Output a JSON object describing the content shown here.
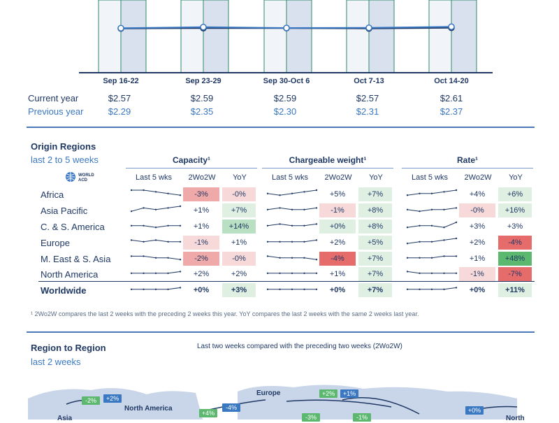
{
  "top_chart": {
    "weeks": [
      "Sep 16-22",
      "Sep 23-29",
      "Sep 30-Oct 6",
      "Oct 7-13",
      "Oct 14-20"
    ],
    "rows": [
      {
        "label": "Current year",
        "values": [
          "$2.57",
          "$2.59",
          "$2.59",
          "$2.57",
          "$2.61"
        ]
      },
      {
        "label": "Previous year",
        "values": [
          "$2.29",
          "$2.35",
          "$2.30",
          "$2.31",
          "$2.37"
        ]
      }
    ],
    "current": [
      2.57,
      2.59,
      2.59,
      2.57,
      2.61
    ],
    "previous": [
      2.29,
      2.35,
      2.3,
      2.31,
      2.37
    ],
    "colors": {
      "current": "#1f3864",
      "previous": "#3a78c2",
      "bar": "#d9e1ef"
    }
  },
  "origin": {
    "title": "Origin Regions",
    "subtitle": "last 2 to 5 weeks",
    "logo_text": [
      "WORLD",
      "ACD"
    ],
    "groups": [
      {
        "title": "Capacity¹",
        "cols": [
          "Last 5 wks",
          "2Wo2W",
          "YoY"
        ]
      },
      {
        "title": "Chargeable weight¹",
        "cols": [
          "Last 5 wks",
          "2Wo2W",
          "YoY"
        ]
      },
      {
        "title": "Rate¹",
        "cols": [
          "Last 5 wks",
          "2Wo2W",
          "YoY"
        ]
      }
    ],
    "regions": [
      {
        "name": "Africa",
        "bold": false,
        "sparks": [
          [
            5,
            5,
            4,
            3,
            2
          ],
          [
            3,
            2,
            3,
            4,
            5
          ],
          [
            2,
            3,
            3,
            4,
            5
          ]
        ],
        "cells": [
          [
            "-3%",
            "neg2"
          ],
          [
            "-0%",
            "neg1"
          ],
          [
            "+5%",
            "neu"
          ],
          [
            "+7%",
            "pos1"
          ],
          [
            "+4%",
            "neu"
          ],
          [
            "+6%",
            "pos1"
          ]
        ]
      },
      {
        "name": "Asia Pacific",
        "bold": false,
        "sparks": [
          [
            2,
            4,
            3,
            4,
            5
          ],
          [
            3,
            4,
            3,
            3,
            4
          ],
          [
            3,
            2,
            3,
            3,
            4
          ]
        ],
        "cells": [
          [
            "+1%",
            "neu"
          ],
          [
            "+7%",
            "pos1"
          ],
          [
            "-1%",
            "neg1"
          ],
          [
            "+8%",
            "pos1"
          ],
          [
            "-0%",
            "neg1"
          ],
          [
            "+16%",
            "pos1"
          ]
        ]
      },
      {
        "name": "C. & S. America",
        "bold": false,
        "sparks": [
          [
            3,
            3,
            2,
            3,
            3
          ],
          [
            3,
            4,
            3,
            3,
            4
          ],
          [
            2,
            3,
            3,
            2,
            5
          ]
        ],
        "cells": [
          [
            "+1%",
            "neu"
          ],
          [
            "+14%",
            "pos2"
          ],
          [
            "+0%",
            "pos1"
          ],
          [
            "+8%",
            "pos1"
          ],
          [
            "+3%",
            "neu"
          ],
          [
            "+3%",
            "neu"
          ]
        ]
      },
      {
        "name": "Europe",
        "bold": false,
        "sparks": [
          [
            4,
            3,
            4,
            3,
            3
          ],
          [
            3,
            3,
            3,
            3,
            4
          ],
          [
            2,
            3,
            3,
            4,
            5
          ]
        ],
        "cells": [
          [
            "-1%",
            "neg1"
          ],
          [
            "+1%",
            "neu"
          ],
          [
            "+2%",
            "neu"
          ],
          [
            "+5%",
            "pos1"
          ],
          [
            "+2%",
            "neu"
          ],
          [
            "-4%",
            "neg3"
          ]
        ]
      },
      {
        "name": "M. East & S. Asia",
        "bold": false,
        "sparks": [
          [
            4,
            4,
            3,
            3,
            2
          ],
          [
            4,
            3,
            3,
            3,
            2
          ],
          [
            3,
            3,
            3,
            4,
            4
          ]
        ],
        "cells": [
          [
            "-2%",
            "neg2"
          ],
          [
            "-0%",
            "neg1"
          ],
          [
            "-4%",
            "neg3"
          ],
          [
            "+7%",
            "pos1"
          ],
          [
            "+1%",
            "neu"
          ],
          [
            "+48%",
            "pos3"
          ]
        ]
      },
      {
        "name": "North America",
        "bold": false,
        "sparks": [
          [
            3,
            3,
            3,
            3,
            4
          ],
          [
            3,
            3,
            3,
            3,
            3
          ],
          [
            4,
            3,
            3,
            3,
            3
          ]
        ],
        "cells": [
          [
            "+2%",
            "neu"
          ],
          [
            "+2%",
            "neu"
          ],
          [
            "+1%",
            "neu"
          ],
          [
            "+7%",
            "pos1"
          ],
          [
            "-1%",
            "neg1"
          ],
          [
            "-7%",
            "neg3"
          ]
        ]
      },
      {
        "name": "Worldwide",
        "bold": true,
        "sparks": [
          [
            3,
            3,
            3,
            3,
            4
          ],
          [
            3,
            3,
            3,
            3,
            3
          ],
          [
            3,
            3,
            3,
            3,
            4
          ]
        ],
        "cells": [
          [
            "+0%",
            "neu"
          ],
          [
            "+3%",
            "pos1"
          ],
          [
            "+0%",
            "neu"
          ],
          [
            "+7%",
            "pos1"
          ],
          [
            "+0%",
            "neu"
          ],
          [
            "+11%",
            "pos1"
          ]
        ]
      }
    ],
    "footnote": "¹ 2Wo2W compares the last 2 weeks with the preceding 2 weeks this year. YoY compares the last 2 weeks with the same 2 weeks last year.",
    "colors": {
      "neg1": "#f8d9d9",
      "neg2": "#f0a9a9",
      "neg3": "#e66b6b",
      "pos1": "#dff0e3",
      "pos2": "#b9e0c2",
      "pos3": "#5cb86f",
      "neu": "#ffffff"
    }
  },
  "region_to_region": {
    "title": "Region to Region",
    "subtitle": "last 2 weeks",
    "note": "Last two weeks compared with the preceding two weeks (2Wo2W)",
    "labels": [
      "North America",
      "Europe",
      "Asia",
      "North"
    ],
    "badges": [
      {
        "text": "-2%",
        "color": "#5cb86f"
      },
      {
        "text": "+2%",
        "color": "#3a78c2"
      },
      {
        "text": "+4%",
        "color": "#5cb86f"
      },
      {
        "text": "-4%",
        "color": "#3a78c2"
      },
      {
        "text": "+2%",
        "color": "#5cb86f"
      },
      {
        "text": "+1%",
        "color": "#3a78c2"
      },
      {
        "text": "+0%",
        "color": "#3a78c2"
      },
      {
        "text": "-3%",
        "color": "#5cb86f"
      },
      {
        "text": "-1%",
        "color": "#5cb86f"
      }
    ]
  }
}
